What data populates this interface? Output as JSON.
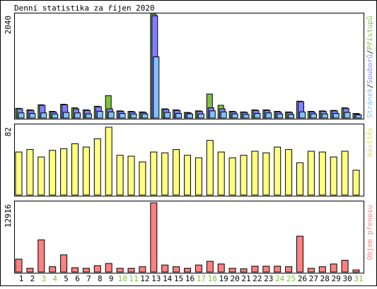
{
  "title": "Denní statistika za říjen 2020",
  "colors": {
    "hits": "#80c040",
    "files": "#8080ff",
    "pages": "#80c0ff",
    "visits": "#ffff80",
    "kbytes": "#ff8080",
    "weekday_label": "#000000",
    "weekend_label": "#80c040",
    "frame": "#000000"
  },
  "chart_data": [
    {
      "type": "bar",
      "name": "hits-files-pages",
      "ylabel": "2040",
      "right_label": [
        "Stránek",
        "/",
        "Souborů",
        "/",
        "Přístupů"
      ],
      "x": [
        1,
        2,
        3,
        4,
        5,
        6,
        7,
        8,
        9,
        10,
        11,
        12,
        13,
        14,
        15,
        16,
        17,
        18,
        19,
        20,
        21,
        22,
        23,
        24,
        25,
        26,
        27,
        28,
        29,
        30,
        31
      ],
      "ymax": 2040,
      "series": [
        {
          "name": "Přístupů",
          "values": [
            190,
            160,
            260,
            130,
            270,
            200,
            160,
            230,
            440,
            140,
            130,
            120,
            2040,
            180,
            160,
            110,
            140,
            470,
            250,
            130,
            120,
            160,
            160,
            130,
            120,
            330,
            130,
            140,
            150,
            200,
            90
          ]
        },
        {
          "name": "Souborů",
          "values": [
            180,
            150,
            250,
            120,
            260,
            180,
            150,
            220,
            180,
            130,
            120,
            110,
            2010,
            170,
            150,
            100,
            130,
            200,
            180,
            120,
            110,
            150,
            150,
            120,
            110,
            320,
            120,
            130,
            140,
            190,
            80
          ]
        },
        {
          "name": "Stránek",
          "values": [
            100,
            90,
            100,
            80,
            110,
            100,
            80,
            130,
            120,
            90,
            80,
            80,
            1200,
            110,
            90,
            80,
            80,
            140,
            120,
            80,
            70,
            90,
            100,
            80,
            70,
            120,
            80,
            80,
            90,
            110,
            60
          ]
        }
      ]
    },
    {
      "type": "bar",
      "name": "visits",
      "ylabel": "82",
      "right_label": [
        "Návštěv"
      ],
      "x": [
        1,
        2,
        3,
        4,
        5,
        6,
        7,
        8,
        9,
        10,
        11,
        12,
        13,
        14,
        15,
        16,
        17,
        18,
        19,
        20,
        21,
        22,
        23,
        24,
        25,
        26,
        27,
        28,
        29,
        30,
        31
      ],
      "ymax": 82,
      "series": [
        {
          "name": "Návštěv",
          "values": [
            52,
            55,
            46,
            54,
            56,
            62,
            58,
            68,
            82,
            48,
            47,
            40,
            52,
            51,
            55,
            48,
            45,
            66,
            52,
            45,
            48,
            53,
            51,
            58,
            55,
            39,
            53,
            52,
            46,
            53,
            30
          ]
        }
      ]
    },
    {
      "type": "bar",
      "name": "kbytes",
      "ylabel": "12916",
      "right_label": [
        "Objem přenosu"
      ],
      "x": [
        1,
        2,
        3,
        4,
        5,
        6,
        7,
        8,
        9,
        10,
        11,
        12,
        13,
        14,
        15,
        16,
        17,
        18,
        19,
        20,
        21,
        22,
        23,
        24,
        25,
        26,
        27,
        28,
        29,
        30,
        31
      ],
      "ymax": 12916,
      "series": [
        {
          "name": "Objem přenosu",
          "values": [
            2400,
            700,
            6000,
            1000,
            3200,
            800,
            700,
            1200,
            1600,
            700,
            700,
            1000,
            12916,
            1300,
            1000,
            700,
            1300,
            2000,
            1500,
            700,
            600,
            1100,
            1100,
            1100,
            1000,
            6700,
            700,
            1000,
            1500,
            2200,
            400
          ]
        }
      ]
    }
  ],
  "x_labels": [
    "1",
    "2",
    "3",
    "4",
    "5",
    "6",
    "7",
    "8",
    "9",
    "10",
    "11",
    "12",
    "13",
    "14",
    "15",
    "16",
    "17",
    "18",
    "19",
    "20",
    "21",
    "22",
    "23",
    "24",
    "25",
    "26",
    "27",
    "28",
    "29",
    "30",
    "31"
  ],
  "weekend_days": [
    3,
    4,
    10,
    11,
    17,
    18,
    24,
    25,
    31
  ]
}
